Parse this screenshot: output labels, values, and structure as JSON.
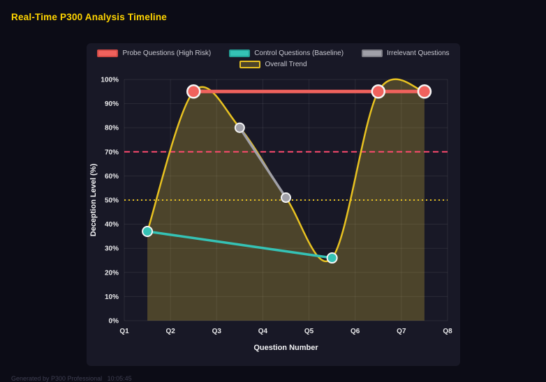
{
  "page": {
    "title": "Real-Time P300 Analysis Timeline",
    "footer": "Generated by P300 Professional   10:05:45"
  },
  "colors": {
    "page_background": "#0c0c16",
    "panel_background": "#181826",
    "title_yellow": "#ffd400",
    "grid": "rgba(255,255,255,0.08)",
    "axis_text": "#e8e8ea",
    "probe_red": "#f0625d",
    "control_teal": "#35c2b5",
    "irrelevant_gray": "#a0a0a8",
    "trend_yellow": "#e8c221",
    "threshold_red": "#ff4b6e",
    "threshold_yellow": "#e8c221",
    "area_fill": "rgba(230,200,60,0.25)"
  },
  "chart_data": {
    "type": "line",
    "title": "Real-Time P300 Analysis Timeline",
    "xlabel": "Question Number",
    "ylabel": "Deception Level (%)",
    "x_ticks": [
      "Q1",
      "Q2",
      "Q3",
      "Q4",
      "Q5",
      "Q6",
      "Q7",
      "Q8"
    ],
    "x_range": [
      1,
      8
    ],
    "ylim": [
      0,
      100
    ],
    "y_tick_step": 10,
    "y_tick_suffix": "%",
    "grid": true,
    "legend_position": "top",
    "series": [
      {
        "name": "Probe Questions (High Risk)",
        "color": "#f0625d",
        "border": "#cf4a45",
        "x": [
          2.5,
          6.5,
          7.5
        ],
        "y": [
          95,
          95,
          95
        ],
        "line_width": 5,
        "point_radius": 9,
        "point_border": 2.5,
        "smooth": false
      },
      {
        "name": "Control Questions (Baseline)",
        "color": "#35c2b5",
        "border": "#23a096",
        "x": [
          1.5,
          5.5
        ],
        "y": [
          37,
          26
        ],
        "line_width": 3.5,
        "point_radius": 7,
        "point_border": 2,
        "smooth": false
      },
      {
        "name": "Irrelevant Questions",
        "color": "#a0a0a8",
        "border": "#7d7d85",
        "x": [
          3.5,
          4.5
        ],
        "y": [
          80,
          51
        ],
        "line_width": 3.5,
        "point_radius": 6.5,
        "point_border": 2,
        "smooth": false
      },
      {
        "name": "Overall Trend",
        "color": "#e8c221",
        "border": "#e8c221",
        "fill": "rgba(230,200,60,0.25)",
        "x": [
          1.5,
          2.5,
          3.5,
          4.5,
          5.5,
          6.5,
          7.5
        ],
        "y": [
          37,
          95,
          80,
          51,
          26,
          95,
          95
        ],
        "line_width": 2.5,
        "point_radius": 0,
        "point_border": 0,
        "smooth": true
      }
    ],
    "thresholds": [
      {
        "y": 70,
        "color": "#ff4b6e",
        "style": "dashed",
        "width": 2
      },
      {
        "y": 50,
        "color": "#e8c221",
        "style": "dotted",
        "width": 2
      }
    ]
  }
}
